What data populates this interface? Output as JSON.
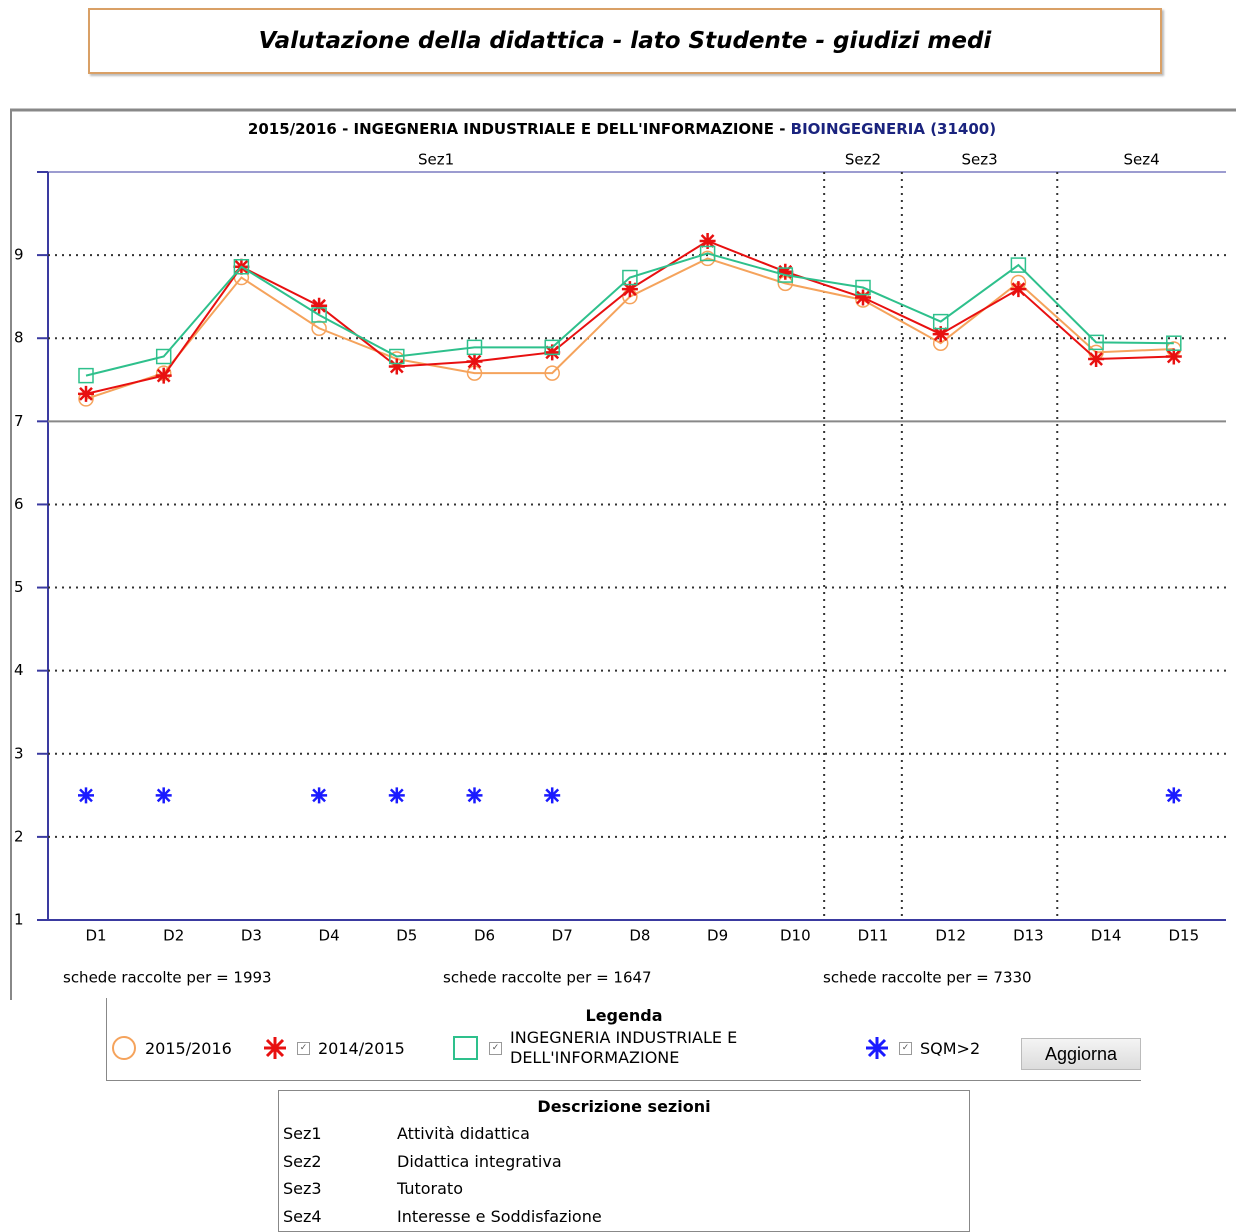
{
  "header": {
    "title": "Valutazione della didattica - lato Studente - giudizi medi"
  },
  "chart_data": {
    "type": "line",
    "title": [
      "2015/2016 - INGEGNERIA INDUSTRIALE E DELL'INFORMAZIONE - ",
      "BIOINGEGNERIA (31400)"
    ],
    "sections": [
      "Sez1",
      "Sez2",
      "Sez3",
      "Sez4"
    ],
    "categories": [
      "D1",
      "D2",
      "D3",
      "D4",
      "D5",
      "D6",
      "D7",
      "D8",
      "D9",
      "D10",
      "D11",
      "D12",
      "D13",
      "D14",
      "D15"
    ],
    "series": [
      {
        "name": "2015/2016",
        "color": "#f5a35c",
        "marker": "circle",
        "values": [
          7.27,
          7.58,
          8.73,
          8.12,
          7.75,
          7.58,
          7.58,
          8.5,
          8.96,
          8.66,
          8.46,
          7.94,
          8.67,
          7.83,
          7.87
        ]
      },
      {
        "name": "2014/2015",
        "color": "#e81010",
        "marker": "asterisk",
        "values": [
          7.33,
          7.55,
          8.86,
          8.39,
          7.66,
          7.72,
          7.83,
          8.59,
          9.17,
          8.8,
          8.49,
          8.05,
          8.59,
          7.75,
          7.78
        ]
      },
      {
        "name": "INGEGNERIA INDUSTRIALE E DELL'INFORMAZIONE",
        "color": "#2ec08c",
        "marker": "square",
        "values": [
          7.55,
          7.78,
          8.86,
          8.28,
          7.78,
          7.89,
          7.89,
          8.73,
          9.02,
          8.76,
          8.61,
          8.2,
          8.88,
          7.95,
          7.94
        ]
      },
      {
        "name": "SQM>2",
        "color": "#1a1aff",
        "marker": "asterisk",
        "line": false,
        "values": [
          2.5,
          2.5,
          null,
          2.5,
          2.5,
          2.5,
          2.5,
          null,
          null,
          null,
          null,
          null,
          null,
          null,
          2.5
        ]
      }
    ],
    "ylim": [
      1,
      10
    ],
    "yticks": [
      1,
      2,
      3,
      4,
      5,
      6,
      7,
      8,
      9
    ],
    "grid": true,
    "reference_line": 7,
    "counts": [
      {
        "text": "schede raccolte per = 1993",
        "color": "#a0764a"
      },
      {
        "text": "schede raccolte per = 1647",
        "color": "#e81010"
      },
      {
        "text": "schede raccolte per = 7330",
        "color": "#2ec08c"
      }
    ],
    "legend_title": "Legenda"
  },
  "button": "Aggiorna",
  "sections_table": {
    "title": "Descrizione sezioni",
    "rows": [
      [
        "Sez1",
        "Attività didattica"
      ],
      [
        "Sez2",
        "Didattica integrativa"
      ],
      [
        "Sez3",
        "Tutorato"
      ],
      [
        "Sez4",
        "Interesse e Soddisfazione"
      ]
    ]
  }
}
